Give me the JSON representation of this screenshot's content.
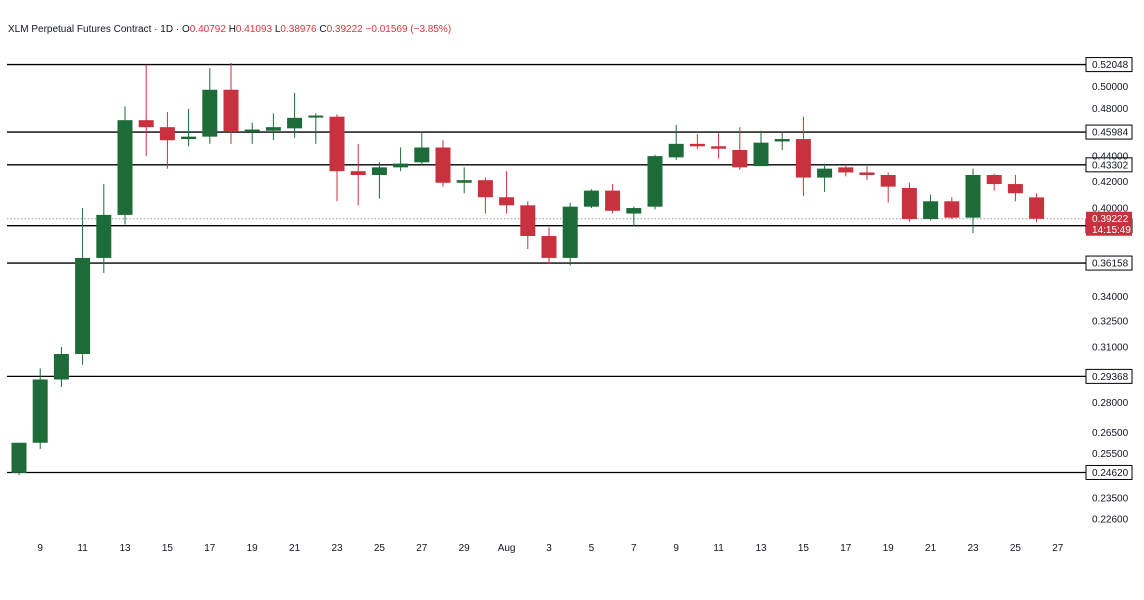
{
  "header": {
    "title": "XLM Perpetual Futures Contract · 1D ·",
    "o_label": "O",
    "o_value": "0.40792",
    "h_label": "H",
    "h_value": "0.41093",
    "l_label": "L",
    "l_value": "0.38976",
    "c_label": "C",
    "c_value": "0.39222",
    "change": "−0.01569 (−3.85%)"
  },
  "colors": {
    "up": "#1e6b3a",
    "down": "#c8323e",
    "line": "#000000",
    "price_tag": "#c8323e"
  },
  "chart_data": {
    "type": "candlestick",
    "scale": "log",
    "ylim": [
      0.2175,
      0.5445
    ],
    "y_ticks": [
      "0.50000",
      "0.48000",
      "0.44000",
      "0.42000",
      "0.40000",
      "0.34000",
      "0.32500",
      "0.31000",
      "0.28000",
      "0.26500",
      "0.25500",
      "0.23500",
      "0.22600"
    ],
    "x_tick_labels": [
      "9",
      "11",
      "13",
      "15",
      "17",
      "19",
      "21",
      "23",
      "25",
      "27",
      "29",
      "Aug",
      "3",
      "5",
      "7",
      "9",
      "11",
      "13",
      "15",
      "17",
      "19",
      "21",
      "23",
      "25",
      "27"
    ],
    "x_tick_days": [
      9,
      11,
      13,
      15,
      17,
      19,
      21,
      23,
      25,
      27,
      29,
      31,
      33,
      35,
      37,
      39,
      41,
      43,
      45,
      47,
      49,
      51,
      53,
      55,
      57
    ],
    "horizontal_levels": [
      "0.52048",
      "0.45984",
      "0.43302",
      "0.38725",
      "0.36158",
      "0.29368",
      "0.24620"
    ],
    "last_price": {
      "value": "0.39222",
      "countdown": "14:15:49"
    },
    "candles": [
      {
        "day": 8,
        "o": 0.246,
        "h": 0.26,
        "l": 0.245,
        "c": 0.26
      },
      {
        "day": 9,
        "o": 0.26,
        "h": 0.298,
        "l": 0.257,
        "c": 0.292
      },
      {
        "day": 10,
        "o": 0.292,
        "h": 0.31,
        "l": 0.288,
        "c": 0.306
      },
      {
        "day": 11,
        "o": 0.306,
        "h": 0.4,
        "l": 0.3,
        "c": 0.365
      },
      {
        "day": 12,
        "o": 0.365,
        "h": 0.418,
        "l": 0.355,
        "c": 0.395
      },
      {
        "day": 13,
        "o": 0.395,
        "h": 0.482,
        "l": 0.388,
        "c": 0.47
      },
      {
        "day": 14,
        "o": 0.47,
        "h": 0.52,
        "l": 0.44,
        "c": 0.464
      },
      {
        "day": 15,
        "o": 0.464,
        "h": 0.477,
        "l": 0.43,
        "c": 0.453
      },
      {
        "day": 16,
        "o": 0.454,
        "h": 0.48,
        "l": 0.448,
        "c": 0.456
      },
      {
        "day": 17,
        "o": 0.456,
        "h": 0.517,
        "l": 0.45,
        "c": 0.497
      },
      {
        "day": 18,
        "o": 0.497,
        "h": 0.522,
        "l": 0.45,
        "c": 0.46
      },
      {
        "day": 19,
        "o": 0.46,
        "h": 0.468,
        "l": 0.45,
        "c": 0.462
      },
      {
        "day": 20,
        "o": 0.461,
        "h": 0.476,
        "l": 0.453,
        "c": 0.464
      },
      {
        "day": 21,
        "o": 0.463,
        "h": 0.494,
        "l": 0.455,
        "c": 0.472
      },
      {
        "day": 22,
        "o": 0.474,
        "h": 0.476,
        "l": 0.45,
        "c": 0.474
      },
      {
        "day": 23,
        "o": 0.473,
        "h": 0.475,
        "l": 0.405,
        "c": 0.428
      },
      {
        "day": 24,
        "o": 0.428,
        "h": 0.45,
        "l": 0.402,
        "c": 0.425
      },
      {
        "day": 25,
        "o": 0.425,
        "h": 0.435,
        "l": 0.407,
        "c": 0.431
      },
      {
        "day": 26,
        "o": 0.431,
        "h": 0.447,
        "l": 0.428,
        "c": 0.434
      },
      {
        "day": 27,
        "o": 0.435,
        "h": 0.459,
        "l": 0.433,
        "c": 0.447
      },
      {
        "day": 28,
        "o": 0.447,
        "h": 0.453,
        "l": 0.416,
        "c": 0.419
      },
      {
        "day": 29,
        "o": 0.419,
        "h": 0.431,
        "l": 0.411,
        "c": 0.421
      },
      {
        "day": 30,
        "o": 0.421,
        "h": 0.423,
        "l": 0.396,
        "c": 0.408
      },
      {
        "day": 31,
        "o": 0.408,
        "h": 0.428,
        "l": 0.396,
        "c": 0.402
      },
      {
        "day": 32,
        "o": 0.402,
        "h": 0.405,
        "l": 0.371,
        "c": 0.38
      },
      {
        "day": 33,
        "o": 0.38,
        "h": 0.386,
        "l": 0.361,
        "c": 0.365
      },
      {
        "day": 34,
        "o": 0.365,
        "h": 0.404,
        "l": 0.36,
        "c": 0.401
      },
      {
        "day": 35,
        "o": 0.401,
        "h": 0.414,
        "l": 0.4,
        "c": 0.413
      },
      {
        "day": 36,
        "o": 0.413,
        "h": 0.418,
        "l": 0.396,
        "c": 0.398
      },
      {
        "day": 37,
        "o": 0.396,
        "h": 0.401,
        "l": 0.387,
        "c": 0.4
      },
      {
        "day": 38,
        "o": 0.401,
        "h": 0.441,
        "l": 0.399,
        "c": 0.44
      },
      {
        "day": 39,
        "o": 0.439,
        "h": 0.466,
        "l": 0.437,
        "c": 0.45
      },
      {
        "day": 40,
        "o": 0.45,
        "h": 0.458,
        "l": 0.446,
        "c": 0.448
      },
      {
        "day": 41,
        "o": 0.448,
        "h": 0.459,
        "l": 0.438,
        "c": 0.446
      },
      {
        "day": 42,
        "o": 0.445,
        "h": 0.464,
        "l": 0.429,
        "c": 0.431
      },
      {
        "day": 43,
        "o": 0.432,
        "h": 0.461,
        "l": 0.432,
        "c": 0.451
      },
      {
        "day": 44,
        "o": 0.452,
        "h": 0.46,
        "l": 0.445,
        "c": 0.454
      },
      {
        "day": 45,
        "o": 0.454,
        "h": 0.473,
        "l": 0.409,
        "c": 0.423
      },
      {
        "day": 46,
        "o": 0.423,
        "h": 0.434,
        "l": 0.412,
        "c": 0.43
      },
      {
        "day": 47,
        "o": 0.431,
        "h": 0.433,
        "l": 0.424,
        "c": 0.427
      },
      {
        "day": 48,
        "o": 0.427,
        "h": 0.432,
        "l": 0.421,
        "c": 0.425
      },
      {
        "day": 49,
        "o": 0.425,
        "h": 0.427,
        "l": 0.404,
        "c": 0.416
      },
      {
        "day": 50,
        "o": 0.415,
        "h": 0.419,
        "l": 0.39,
        "c": 0.392
      },
      {
        "day": 51,
        "o": 0.392,
        "h": 0.41,
        "l": 0.391,
        "c": 0.405
      },
      {
        "day": 52,
        "o": 0.405,
        "h": 0.408,
        "l": 0.392,
        "c": 0.393
      },
      {
        "day": 53,
        "o": 0.393,
        "h": 0.43,
        "l": 0.382,
        "c": 0.425
      },
      {
        "day": 54,
        "o": 0.425,
        "h": 0.426,
        "l": 0.413,
        "c": 0.418
      },
      {
        "day": 55,
        "o": 0.418,
        "h": 0.425,
        "l": 0.405,
        "c": 0.411
      },
      {
        "day": 56,
        "o": 0.4079,
        "h": 0.4109,
        "l": 0.3898,
        "c": 0.3922
      }
    ]
  }
}
